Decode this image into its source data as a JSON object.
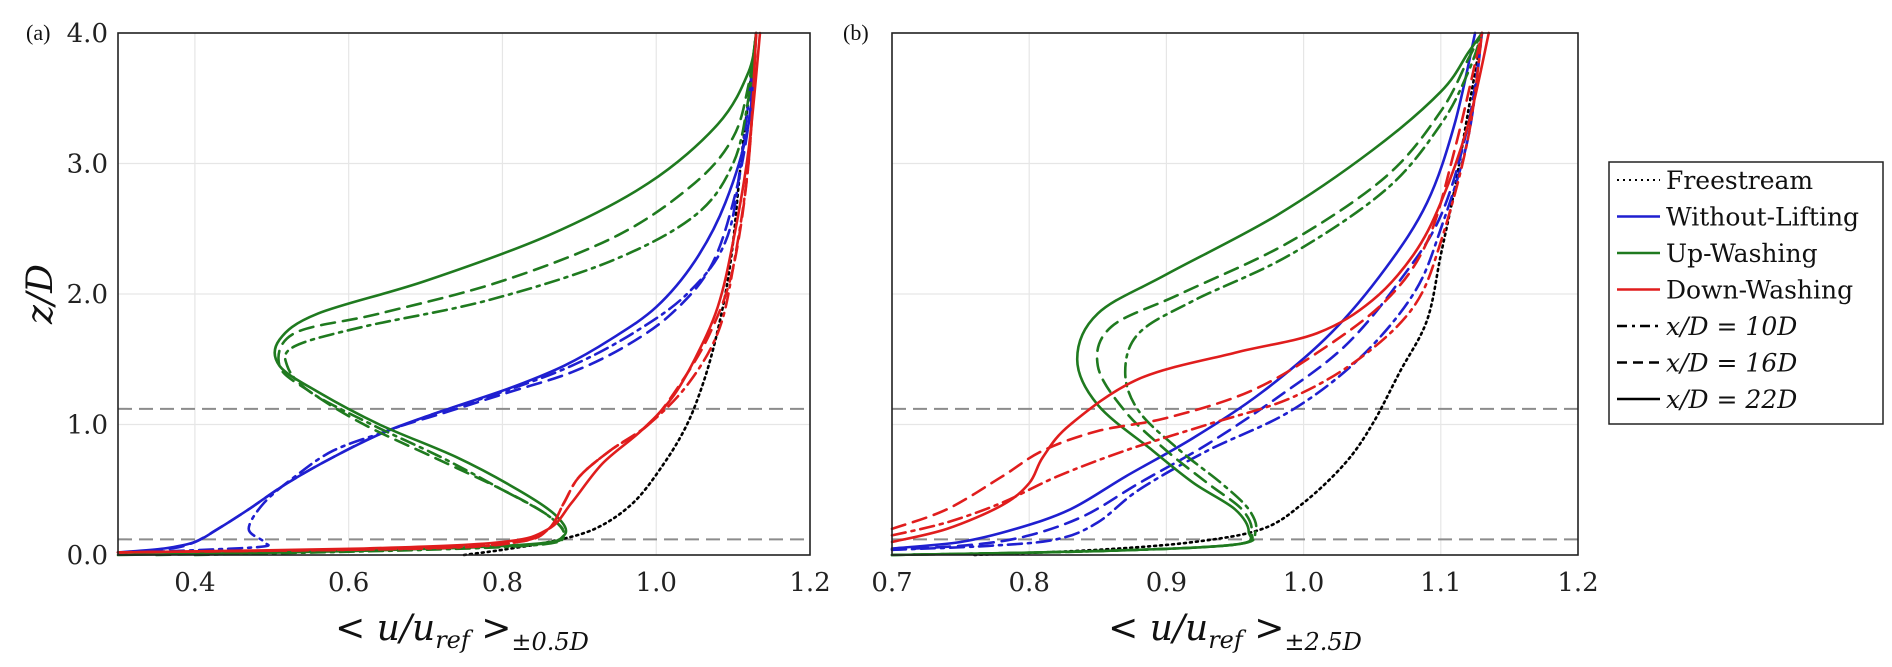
{
  "chart_data": [
    {
      "type": "line",
      "panel": "(a)",
      "xlabel": "< u/u_ref >_{±0.5D}",
      "xlabel_main": "< u/u",
      "xlabel_ref": "ref",
      "xlabel_close": " >",
      "xlabel_sub": "±0.5D",
      "ylabel": "z/D",
      "xlim": [
        0.3,
        1.2
      ],
      "ylim": [
        0.0,
        4.0
      ],
      "xticks": [
        "0.4",
        "0.6",
        "0.8",
        "1.0",
        "1.2"
      ],
      "xtick_values": [
        0.4,
        0.6,
        0.8,
        1.0,
        1.2
      ],
      "yticks": [
        "0.0",
        "1.0",
        "2.0",
        "3.0",
        "4.0"
      ],
      "ytick_values": [
        0.0,
        1.0,
        2.0,
        3.0,
        4.0
      ],
      "ref_lines_y": [
        0.12,
        1.12
      ],
      "grid": true,
      "series": [
        {
          "name": "Freestream",
          "color": "#000000",
          "style": "dotted",
          "x": [
            0.75,
            0.8,
            0.86,
            0.92,
            0.97,
            1.01,
            1.04,
            1.06,
            1.075,
            1.09,
            1.1,
            1.11,
            1.12,
            1.13
          ],
          "y": [
            0.0,
            0.04,
            0.1,
            0.2,
            0.4,
            0.7,
            1.0,
            1.3,
            1.6,
            2.0,
            2.4,
            3.0,
            3.5,
            4.0
          ]
        },
        {
          "name": "Without-Lifting x/D=10D",
          "color": "#1f1fd0",
          "style": "dashdot",
          "x": [
            0.33,
            0.48,
            0.49,
            0.47,
            0.49,
            0.53,
            0.58,
            0.65,
            0.72,
            0.8,
            0.89,
            0.97,
            1.04,
            1.09,
            1.11,
            1.13
          ],
          "y": [
            0.02,
            0.06,
            0.1,
            0.2,
            0.4,
            0.6,
            0.8,
            0.95,
            1.1,
            1.25,
            1.45,
            1.7,
            2.0,
            2.4,
            3.0,
            4.0
          ]
        },
        {
          "name": "Without-Lifting x/D=16D",
          "color": "#1f1fd0",
          "style": "dashed",
          "x": [
            0.31,
            0.37,
            0.4,
            0.43,
            0.47,
            0.52,
            0.58,
            0.65,
            0.73,
            0.81,
            0.89,
            0.96,
            1.02,
            1.07,
            1.1,
            1.12,
            1.13
          ],
          "y": [
            0.02,
            0.05,
            0.1,
            0.2,
            0.35,
            0.55,
            0.75,
            0.95,
            1.1,
            1.25,
            1.4,
            1.6,
            1.85,
            2.2,
            2.7,
            3.3,
            4.0
          ]
        },
        {
          "name": "Without-Lifting x/D=22D",
          "color": "#1f1fd0",
          "style": "solid",
          "x": [
            0.3,
            0.36,
            0.4,
            0.43,
            0.47,
            0.52,
            0.58,
            0.65,
            0.73,
            0.81,
            0.88,
            0.94,
            1.0,
            1.05,
            1.09,
            1.12,
            1.13
          ],
          "y": [
            0.02,
            0.05,
            0.1,
            0.2,
            0.35,
            0.55,
            0.75,
            0.95,
            1.12,
            1.28,
            1.45,
            1.65,
            1.9,
            2.25,
            2.7,
            3.3,
            4.0
          ]
        },
        {
          "name": "Up-Washing x/D=10D",
          "color": "#1f7a1f",
          "style": "dashdot",
          "x": [
            0.4,
            0.7,
            0.85,
            0.88,
            0.86,
            0.8,
            0.72,
            0.63,
            0.55,
            0.52,
            0.53,
            0.62,
            0.78,
            0.94,
            1.05,
            1.1,
            1.12,
            1.13
          ],
          "y": [
            0.0,
            0.04,
            0.08,
            0.15,
            0.3,
            0.5,
            0.75,
            1.0,
            1.25,
            1.45,
            1.6,
            1.75,
            1.95,
            2.25,
            2.6,
            3.0,
            3.5,
            4.0
          ]
        },
        {
          "name": "Up-Washing x/D=16D",
          "color": "#1f7a1f",
          "style": "dashed",
          "x": [
            0.35,
            0.65,
            0.84,
            0.88,
            0.86,
            0.8,
            0.71,
            0.62,
            0.55,
            0.51,
            0.53,
            0.64,
            0.8,
            0.95,
            1.05,
            1.1,
            1.12,
            1.13
          ],
          "y": [
            0.0,
            0.04,
            0.08,
            0.15,
            0.3,
            0.5,
            0.75,
            1.0,
            1.25,
            1.45,
            1.7,
            1.85,
            2.1,
            2.45,
            2.85,
            3.2,
            3.6,
            4.0
          ]
        },
        {
          "name": "Up-Washing x/D=22D",
          "color": "#1f7a1f",
          "style": "solid",
          "x": [
            0.3,
            0.6,
            0.83,
            0.88,
            0.87,
            0.82,
            0.74,
            0.64,
            0.56,
            0.51,
            0.51,
            0.56,
            0.7,
            0.86,
            0.99,
            1.08,
            1.12,
            1.13
          ],
          "y": [
            0.0,
            0.03,
            0.08,
            0.15,
            0.3,
            0.5,
            0.75,
            1.0,
            1.25,
            1.45,
            1.65,
            1.85,
            2.1,
            2.45,
            2.85,
            3.3,
            3.7,
            4.0
          ]
        },
        {
          "name": "Down-Washing x/D=10D",
          "color": "#e01d1d",
          "style": "dashdot",
          "x": [
            0.3,
            0.7,
            0.82,
            0.86,
            0.88,
            0.9,
            0.94,
            0.99,
            1.04,
            1.08,
            1.1,
            1.12,
            1.13
          ],
          "y": [
            0.02,
            0.05,
            0.1,
            0.2,
            0.4,
            0.6,
            0.8,
            1.0,
            1.3,
            1.7,
            2.2,
            3.0,
            4.0
          ]
        },
        {
          "name": "Down-Washing x/D=16D",
          "color": "#e01d1d",
          "style": "dashed",
          "x": [
            0.3,
            0.68,
            0.82,
            0.86,
            0.88,
            0.9,
            0.94,
            0.99,
            1.03,
            1.07,
            1.1,
            1.12,
            1.13
          ],
          "y": [
            0.02,
            0.05,
            0.1,
            0.2,
            0.4,
            0.6,
            0.8,
            1.0,
            1.3,
            1.7,
            2.2,
            3.0,
            4.0
          ]
        },
        {
          "name": "Down-Washing x/D=22D",
          "color": "#e01d1d",
          "style": "solid",
          "x": [
            0.3,
            0.62,
            0.8,
            0.86,
            0.89,
            0.93,
            0.98,
            1.02,
            1.05,
            1.08,
            1.1,
            1.12,
            1.135
          ],
          "y": [
            0.02,
            0.05,
            0.1,
            0.2,
            0.4,
            0.7,
            0.95,
            1.2,
            1.5,
            1.9,
            2.4,
            3.1,
            4.0
          ]
        }
      ]
    },
    {
      "type": "line",
      "panel": "(b)",
      "xlabel": "< u/u_ref >_{±2.5D}",
      "xlabel_main": "< u/u",
      "xlabel_ref": "ref",
      "xlabel_close": " >",
      "xlabel_sub": "±2.5D",
      "ylabel": "",
      "xlim": [
        0.7,
        1.2
      ],
      "ylim": [
        0.0,
        4.0
      ],
      "xticks": [
        "0.7",
        "0.8",
        "0.9",
        "1.0",
        "1.1",
        "1.2"
      ],
      "xtick_values": [
        0.7,
        0.8,
        0.9,
        1.0,
        1.1,
        1.2
      ],
      "yticks": [],
      "ytick_values": [
        0.0,
        1.0,
        2.0,
        3.0,
        4.0
      ],
      "ref_lines_y": [
        0.12,
        1.12
      ],
      "grid": true,
      "series": [
        {
          "name": "Freestream",
          "color": "#000000",
          "style": "dotted",
          "x": [
            0.76,
            0.85,
            0.92,
            0.97,
            1.0,
            1.03,
            1.05,
            1.07,
            1.09,
            1.1,
            1.11,
            1.12,
            1.13
          ],
          "y": [
            0.0,
            0.04,
            0.1,
            0.2,
            0.4,
            0.7,
            1.0,
            1.4,
            1.8,
            2.3,
            2.8,
            3.4,
            4.0
          ]
        },
        {
          "name": "Without-Lifting x/D=10D",
          "color": "#1f1fd0",
          "style": "dashdot",
          "x": [
            0.7,
            0.77,
            0.82,
            0.85,
            0.88,
            0.93,
            0.99,
            1.04,
            1.08,
            1.1,
            1.12,
            1.13
          ],
          "y": [
            0.04,
            0.07,
            0.12,
            0.25,
            0.5,
            0.8,
            1.1,
            1.5,
            2.0,
            2.5,
            3.2,
            4.0
          ]
        },
        {
          "name": "Without-Lifting x/D=16D",
          "color": "#1f1fd0",
          "style": "dashed",
          "x": [
            0.7,
            0.76,
            0.8,
            0.84,
            0.88,
            0.93,
            0.98,
            1.03,
            1.07,
            1.1,
            1.12,
            1.13
          ],
          "y": [
            0.04,
            0.08,
            0.15,
            0.3,
            0.55,
            0.85,
            1.2,
            1.6,
            2.1,
            2.6,
            3.3,
            4.0
          ]
        },
        {
          "name": "Without-Lifting x/D=22D",
          "color": "#1f1fd0",
          "style": "solid",
          "x": [
            0.7,
            0.75,
            0.79,
            0.83,
            0.87,
            0.92,
            0.97,
            1.02,
            1.06,
            1.09,
            1.11,
            1.125
          ],
          "y": [
            0.05,
            0.1,
            0.2,
            0.35,
            0.6,
            0.9,
            1.25,
            1.7,
            2.2,
            2.7,
            3.3,
            4.0
          ]
        },
        {
          "name": "Up-Washing x/D=10D",
          "color": "#1f7a1f",
          "style": "dashdot",
          "x": [
            0.7,
            0.85,
            0.95,
            0.965,
            0.96,
            0.94,
            0.91,
            0.88,
            0.87,
            0.88,
            0.92,
            0.99,
            1.06,
            1.1,
            1.12,
            1.13
          ],
          "y": [
            0.0,
            0.03,
            0.08,
            0.18,
            0.35,
            0.55,
            0.8,
            1.1,
            1.4,
            1.7,
            1.95,
            2.3,
            2.8,
            3.3,
            3.7,
            4.0
          ]
        },
        {
          "name": "Up-Washing x/D=16D",
          "color": "#1f7a1f",
          "style": "dashed",
          "x": [
            0.7,
            0.85,
            0.95,
            0.962,
            0.955,
            0.93,
            0.9,
            0.87,
            0.85,
            0.86,
            0.91,
            0.99,
            1.06,
            1.1,
            1.12,
            1.13
          ],
          "y": [
            0.0,
            0.03,
            0.08,
            0.18,
            0.35,
            0.55,
            0.8,
            1.1,
            1.45,
            1.75,
            2.0,
            2.4,
            2.9,
            3.4,
            3.8,
            4.0
          ]
        },
        {
          "name": "Up-Washing x/D=22D",
          "color": "#1f7a1f",
          "style": "solid",
          "x": [
            0.7,
            0.85,
            0.95,
            0.96,
            0.95,
            0.92,
            0.89,
            0.85,
            0.835,
            0.85,
            0.9,
            0.98,
            1.05,
            1.1,
            1.12,
            1.13
          ],
          "y": [
            0.0,
            0.03,
            0.08,
            0.18,
            0.35,
            0.55,
            0.8,
            1.15,
            1.5,
            1.85,
            2.15,
            2.6,
            3.1,
            3.55,
            3.85,
            4.0
          ]
        },
        {
          "name": "Down-Washing x/D=10D",
          "color": "#e01d1d",
          "style": "dashdot",
          "x": [
            0.7,
            0.74,
            0.78,
            0.82,
            0.87,
            0.93,
            0.99,
            1.04,
            1.08,
            1.1,
            1.12,
            1.13
          ],
          "y": [
            0.15,
            0.25,
            0.4,
            0.6,
            0.8,
            1.0,
            1.2,
            1.5,
            1.9,
            2.4,
            3.2,
            4.0
          ]
        },
        {
          "name": "Down-Washing x/D=16D",
          "color": "#e01d1d",
          "style": "dashed",
          "x": [
            0.7,
            0.74,
            0.78,
            0.81,
            0.85,
            0.9,
            0.96,
            1.01,
            1.06,
            1.09,
            1.11,
            1.13
          ],
          "y": [
            0.2,
            0.35,
            0.6,
            0.8,
            0.95,
            1.05,
            1.25,
            1.55,
            1.95,
            2.4,
            3.1,
            4.0
          ]
        },
        {
          "name": "Down-Washing x/D=22D",
          "color": "#e01d1d",
          "style": "solid",
          "x": [
            0.7,
            0.74,
            0.78,
            0.8,
            0.81,
            0.83,
            0.88,
            0.95,
            1.01,
            1.05,
            1.08,
            1.1,
            1.12,
            1.135
          ],
          "y": [
            0.1,
            0.2,
            0.38,
            0.55,
            0.75,
            1.0,
            1.35,
            1.55,
            1.7,
            1.95,
            2.3,
            2.7,
            3.3,
            4.0
          ]
        }
      ]
    }
  ],
  "legend": {
    "position": "right",
    "entries": [
      {
        "label": "Freestream",
        "color": "#000000",
        "style": "dotted"
      },
      {
        "label": "Without-Lifting",
        "color": "#1f1fd0",
        "style": "solid"
      },
      {
        "label": "Up-Washing",
        "color": "#1f7a1f",
        "style": "solid"
      },
      {
        "label": "Down-Washing",
        "color": "#e01d1d",
        "style": "solid"
      },
      {
        "label": "x/D = 10D",
        "color": "#000000",
        "style": "dashdot"
      },
      {
        "label": "x/D = 16D",
        "color": "#000000",
        "style": "dashed"
      },
      {
        "label": "x/D = 22D",
        "color": "#000000",
        "style": "solid"
      }
    ]
  }
}
